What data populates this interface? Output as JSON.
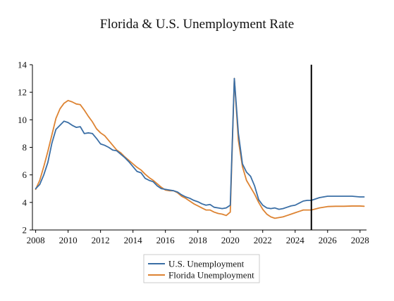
{
  "chart_data": {
    "type": "line",
    "title": "Florida & U.S. Unemployment Rate",
    "xlabel": "",
    "ylabel": "",
    "xlim": [
      2007.8,
      2028.4
    ],
    "ylim": [
      2,
      14
    ],
    "x_ticks": [
      "2008",
      "2010",
      "2012",
      "2014",
      "2016",
      "2018",
      "2020",
      "2022",
      "2024",
      "2026",
      "2028"
    ],
    "y_ticks": [
      "2",
      "4",
      "6",
      "8",
      "10",
      "12",
      "14"
    ],
    "grid": false,
    "legend_position": "bottom-center",
    "vertical_marker_x": 2025.0,
    "colors": {
      "us": "#3a6ea5",
      "florida": "#dd8332",
      "marker": "#000000"
    },
    "series": [
      {
        "name": "U.S. Unemployment",
        "x": [
          2008.0,
          2008.25,
          2008.5,
          2008.75,
          2009.0,
          2009.25,
          2009.5,
          2009.75,
          2010.0,
          2010.25,
          2010.5,
          2010.75,
          2011.0,
          2011.25,
          2011.5,
          2011.75,
          2012.0,
          2012.25,
          2012.5,
          2012.75,
          2013.0,
          2013.25,
          2013.5,
          2013.75,
          2014.0,
          2014.25,
          2014.5,
          2014.75,
          2015.0,
          2015.25,
          2015.5,
          2015.75,
          2016.0,
          2016.25,
          2016.5,
          2016.75,
          2017.0,
          2017.25,
          2017.5,
          2017.75,
          2018.0,
          2018.25,
          2018.5,
          2018.75,
          2019.0,
          2019.25,
          2019.5,
          2019.75,
          2020.0,
          2020.25,
          2020.5,
          2020.75,
          2021.0,
          2021.25,
          2021.5,
          2021.75,
          2022.0,
          2022.25,
          2022.5,
          2022.75,
          2023.0,
          2023.25,
          2023.5,
          2023.75,
          2024.0,
          2024.25,
          2024.5,
          2024.75,
          2025.0,
          2025.5,
          2026.0,
          2026.5,
          2027.0,
          2027.5,
          2028.0,
          2028.25
        ],
        "values": [
          5.0,
          5.3,
          6.0,
          6.9,
          8.3,
          9.3,
          9.6,
          9.9,
          9.8,
          9.6,
          9.45,
          9.5,
          9.0,
          9.05,
          9.0,
          8.65,
          8.25,
          8.15,
          8.0,
          7.8,
          7.75,
          7.5,
          7.25,
          6.95,
          6.6,
          6.25,
          6.15,
          5.75,
          5.6,
          5.5,
          5.2,
          5.0,
          4.95,
          4.9,
          4.85,
          4.75,
          4.55,
          4.4,
          4.3,
          4.15,
          4.05,
          3.9,
          3.8,
          3.85,
          3.65,
          3.6,
          3.55,
          3.6,
          3.8,
          13.0,
          9.0,
          6.8,
          6.2,
          5.9,
          5.2,
          4.2,
          3.8,
          3.6,
          3.55,
          3.6,
          3.5,
          3.55,
          3.65,
          3.75,
          3.8,
          3.95,
          4.1,
          4.15,
          4.15,
          4.35,
          4.45,
          4.45,
          4.45,
          4.45,
          4.4,
          4.4
        ]
      },
      {
        "name": "Florida Unemployment",
        "x": [
          2008.0,
          2008.25,
          2008.5,
          2008.75,
          2009.0,
          2009.25,
          2009.5,
          2009.75,
          2010.0,
          2010.25,
          2010.5,
          2010.75,
          2011.0,
          2011.25,
          2011.5,
          2011.75,
          2012.0,
          2012.25,
          2012.5,
          2012.75,
          2013.0,
          2013.25,
          2013.5,
          2013.75,
          2014.0,
          2014.25,
          2014.5,
          2014.75,
          2015.0,
          2015.25,
          2015.5,
          2015.75,
          2016.0,
          2016.25,
          2016.5,
          2016.75,
          2017.0,
          2017.25,
          2017.5,
          2017.75,
          2018.0,
          2018.25,
          2018.5,
          2018.75,
          2019.0,
          2019.25,
          2019.5,
          2019.75,
          2020.0,
          2020.25,
          2020.5,
          2020.75,
          2021.0,
          2021.25,
          2021.5,
          2021.75,
          2022.0,
          2022.25,
          2022.5,
          2022.75,
          2023.0,
          2023.25,
          2023.5,
          2023.75,
          2024.0,
          2024.25,
          2024.5,
          2024.75,
          2025.0,
          2025.5,
          2026.0,
          2026.5,
          2027.0,
          2027.5,
          2028.0,
          2028.25
        ],
        "values": [
          4.95,
          5.6,
          6.6,
          7.7,
          8.9,
          10.1,
          10.8,
          11.2,
          11.4,
          11.3,
          11.15,
          11.1,
          10.7,
          10.25,
          9.85,
          9.35,
          9.05,
          8.85,
          8.5,
          8.15,
          7.8,
          7.6,
          7.3,
          7.05,
          6.8,
          6.55,
          6.35,
          6.05,
          5.8,
          5.6,
          5.35,
          5.1,
          4.9,
          4.85,
          4.85,
          4.7,
          4.45,
          4.3,
          4.1,
          3.9,
          3.75,
          3.6,
          3.45,
          3.45,
          3.3,
          3.2,
          3.15,
          3.05,
          3.3,
          13.0,
          8.5,
          6.6,
          5.6,
          5.1,
          4.6,
          4.0,
          3.5,
          3.15,
          2.95,
          2.85,
          2.9,
          2.95,
          3.05,
          3.15,
          3.25,
          3.35,
          3.45,
          3.45,
          3.45,
          3.6,
          3.7,
          3.72,
          3.72,
          3.74,
          3.74,
          3.72
        ]
      }
    ]
  }
}
